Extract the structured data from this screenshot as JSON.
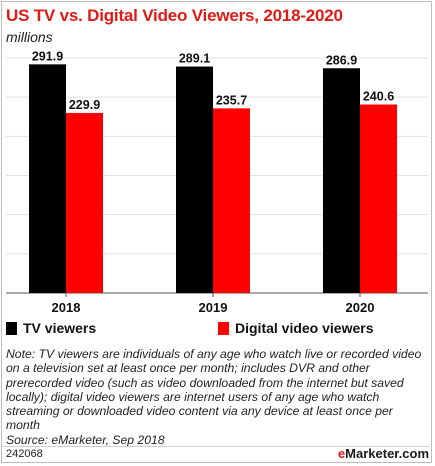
{
  "chart_data": {
    "type": "bar",
    "title": "US TV vs. Digital Video Viewers, 2018-2020",
    "subtitle": "millions",
    "categories": [
      "2018",
      "2019",
      "2020"
    ],
    "series": [
      {
        "name": "TV viewers",
        "color": "#000000",
        "values": [
          291.9,
          289.1,
          286.9
        ]
      },
      {
        "name": "Digital video viewers",
        "color": "#ff0000",
        "values": [
          229.9,
          235.7,
          240.6
        ]
      }
    ],
    "value_labels": [
      [
        "291.9",
        "289.1",
        "286.9"
      ],
      [
        "229.9",
        "235.7",
        "240.6"
      ]
    ],
    "ylim": [
      0,
      300
    ],
    "grid": true,
    "legend_position": "bottom-left"
  },
  "note": "Note: TV viewers are individuals of any age who watch live or recorded video on a television set at least once per month; includes DVR and other prerecorded video (such as video downloaded from the internet but saved locally); digital video viewers are internet users of any age who watch streaming or downloaded video content via any device at least once per month",
  "source": "Source: eMarketer, Sep 2018",
  "footer": {
    "chart_id": "242068",
    "brand_main": "e",
    "brand_rest": "Marketer",
    "brand_suffix": ".com"
  }
}
